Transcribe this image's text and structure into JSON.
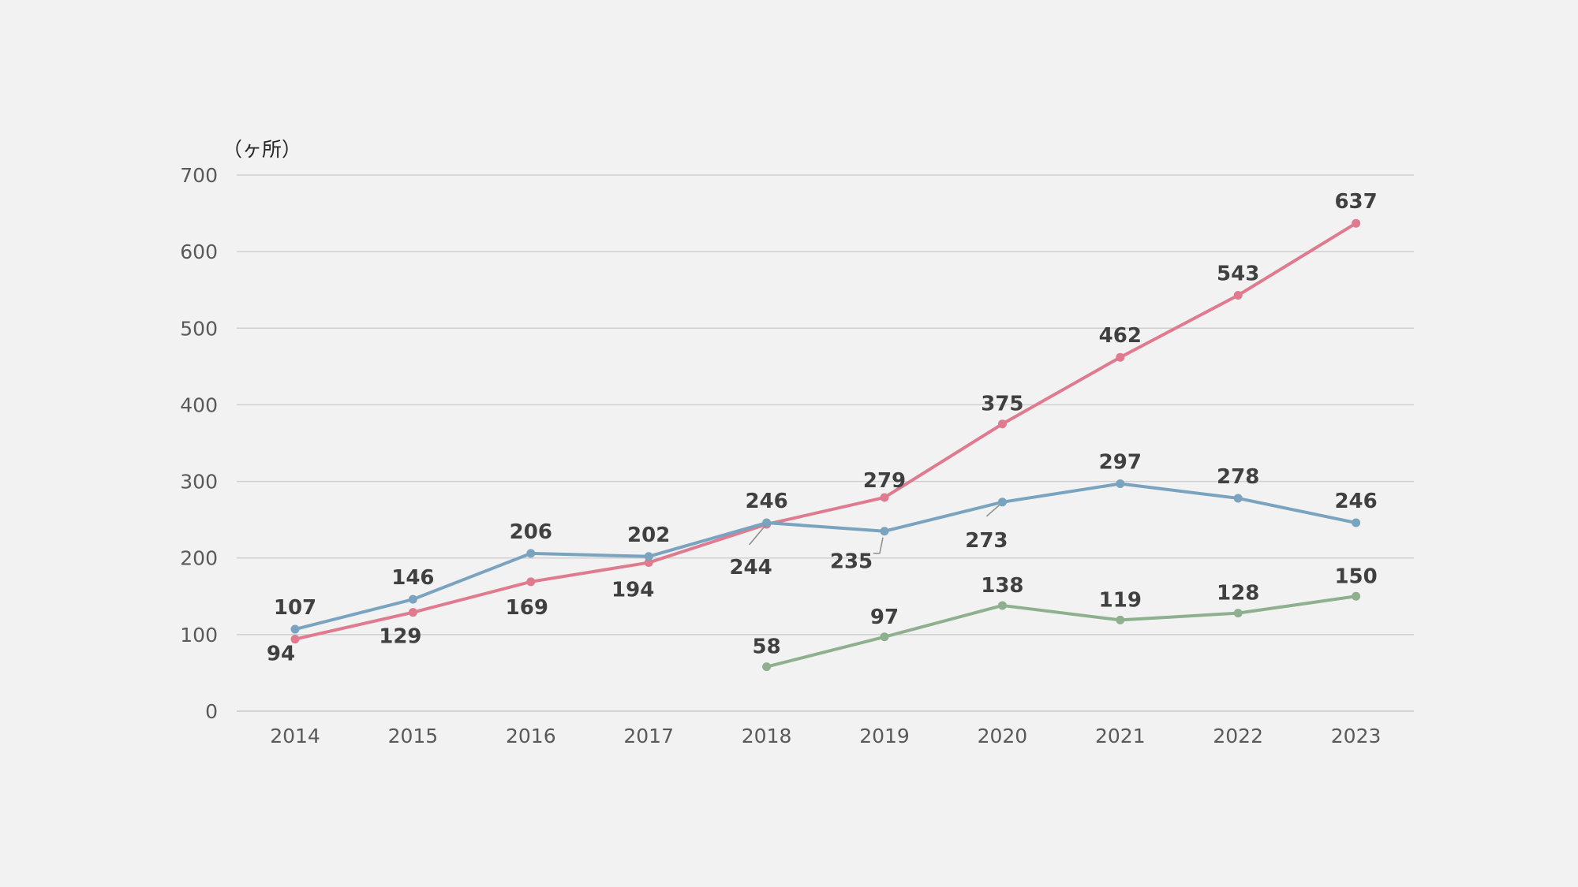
{
  "chart_data": {
    "type": "line",
    "title": "",
    "xlabel": "",
    "ylabel": "",
    "unit_label": "（ヶ所）",
    "categories": [
      "2014",
      "2015",
      "2016",
      "2017",
      "2018",
      "2019",
      "2020",
      "2021",
      "2022",
      "2023"
    ],
    "ylim": [
      0,
      700
    ],
    "yticks": [
      0,
      100,
      200,
      300,
      400,
      500,
      600,
      700
    ],
    "grid": true,
    "legend": "none",
    "series": [
      {
        "color": "#e07b8f",
        "values": [
          94,
          129,
          169,
          194,
          244,
          279,
          375,
          462,
          543,
          637
        ]
      },
      {
        "color": "#7aa3bf",
        "values": [
          107,
          146,
          206,
          202,
          246,
          235,
          273,
          297,
          278,
          246
        ]
      },
      {
        "color": "#8fb08f",
        "values": [
          null,
          null,
          null,
          null,
          58,
          97,
          138,
          119,
          128,
          150
        ]
      }
    ]
  }
}
